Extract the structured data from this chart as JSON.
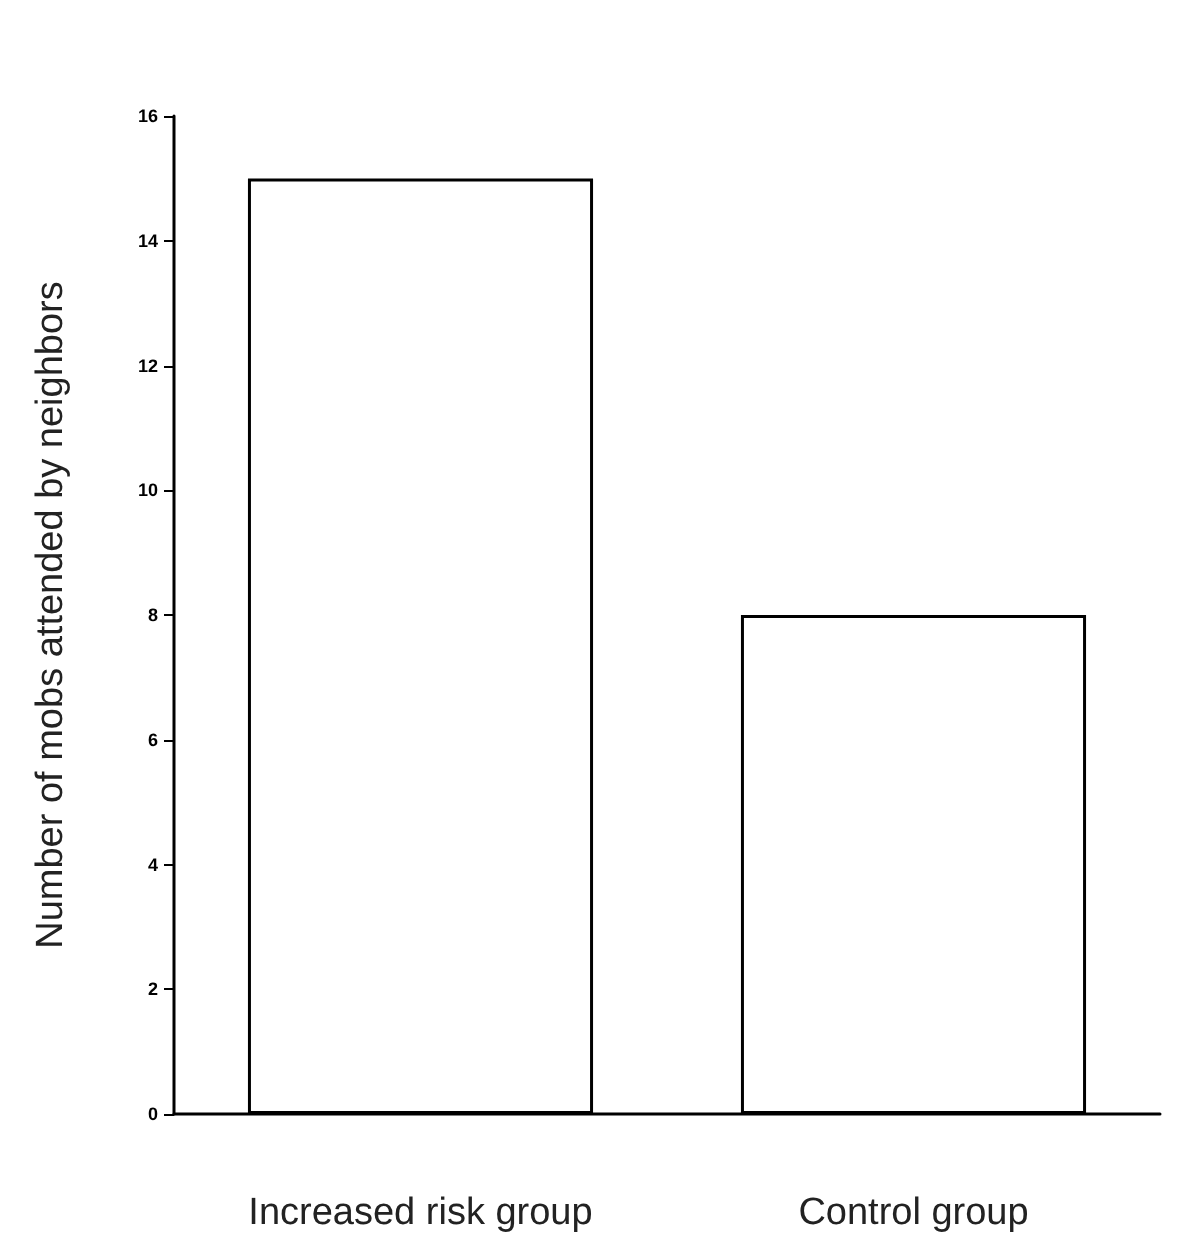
{
  "chart_data": {
    "type": "bar",
    "ylabel": "Number of mobs attended by neighbors",
    "categories": [
      "Increased risk group",
      "Control group"
    ],
    "values": [
      15,
      8
    ],
    "color": "#ffffff",
    "ylim": [
      0,
      16
    ],
    "yticks": [
      0,
      2,
      4,
      6,
      8,
      10,
      12,
      14,
      16
    ],
    "grid": false
  }
}
